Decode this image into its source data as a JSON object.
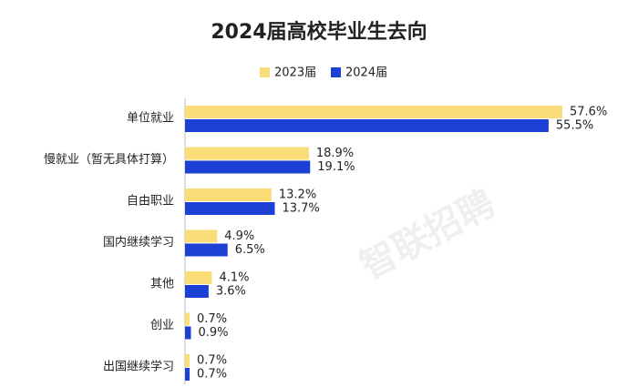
{
  "chart_data": {
    "type": "hbar",
    "title": "2024届高校毕业生去向",
    "categories": [
      "单位就业",
      "慢就业（暂无具体打算）",
      "自由职业",
      "国内继续学习",
      "其他",
      "创业",
      "出国继续学习"
    ],
    "series": [
      {
        "name": "2023届",
        "color": "#fadc78",
        "values": [
          57.6,
          18.9,
          13.2,
          4.9,
          4.1,
          0.7,
          0.7
        ],
        "value_labels": [
          "57.6%",
          "18.9%",
          "13.2%",
          "4.9%",
          "4.1%",
          "0.7%",
          "0.7%"
        ]
      },
      {
        "name": "2024届",
        "color": "#1c3fd4",
        "values": [
          55.5,
          19.1,
          13.7,
          6.5,
          3.6,
          0.9,
          0.7
        ],
        "value_labels": [
          "55.5%",
          "19.1%",
          "13.7%",
          "6.5%",
          "3.6%",
          "0.9%",
          "0.7%"
        ]
      }
    ],
    "watermark": "智联招聘"
  }
}
